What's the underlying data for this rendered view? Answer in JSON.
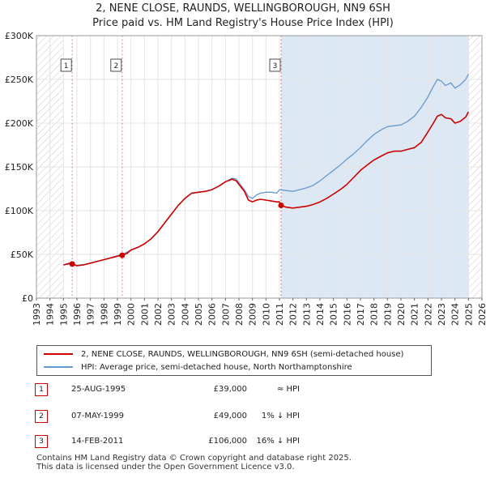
{
  "title_line1": "2, NENE CLOSE, RAUNDS, WELLINGBOROUGH, NN9 6SH",
  "title_line2": "Price paid vs. HM Land Registry's House Price Index (HPI)",
  "colors": {
    "property": "#cc0000",
    "hpi": "#6699cc",
    "shade": "#dde8f5",
    "marker": "#cc0000"
  },
  "chart_data": {
    "type": "line",
    "title": "Price paid vs. HM Land Registry's House Price Index (HPI)",
    "xlabel": "",
    "ylabel": "",
    "xlim": [
      1993,
      2026
    ],
    "ylim": [
      0,
      300000
    ],
    "x_ticks": [
      "1993",
      "1994",
      "1995",
      "1996",
      "1997",
      "1998",
      "1999",
      "2000",
      "2001",
      "2002",
      "2003",
      "2004",
      "2005",
      "2006",
      "2007",
      "2008",
      "2009",
      "2010",
      "2011",
      "2012",
      "2013",
      "2014",
      "2015",
      "2016",
      "2017",
      "2018",
      "2019",
      "2020",
      "2021",
      "2022",
      "2023",
      "2024",
      "2025",
      "2026"
    ],
    "y_ticks": [
      {
        "value": 0,
        "label": "£0"
      },
      {
        "value": 50000,
        "label": "£50K"
      },
      {
        "value": 100000,
        "label": "£100K"
      },
      {
        "value": 150000,
        "label": "£150K"
      },
      {
        "value": 200000,
        "label": "£200K"
      },
      {
        "value": 250000,
        "label": "£250K"
      },
      {
        "value": 300000,
        "label": "£300K"
      }
    ],
    "hatched_ranges": [
      [
        1993,
        1995.0
      ],
      [
        2025.0,
        2026
      ]
    ],
    "series": [
      {
        "name": "2, NENE CLOSE, RAUNDS, WELLINGBOROUGH, NN9 6SH (semi-detached house)",
        "x": [
          1995.0,
          1995.5,
          1995.65,
          1996.0,
          1996.5,
          1997.0,
          1997.5,
          1998.0,
          1998.5,
          1999.0,
          1999.35,
          1999.7,
          2000.0,
          2000.5,
          2001.0,
          2001.5,
          2002.0,
          2002.5,
          2003.0,
          2003.5,
          2004.0,
          2004.5,
          2005.0,
          2005.5,
          2006.0,
          2006.5,
          2007.0,
          2007.5,
          2007.8,
          2008.0,
          2008.4,
          2008.7,
          2009.0,
          2009.3,
          2009.6,
          2010.0,
          2010.4,
          2010.8,
          2011.0,
          2011.12,
          2011.5,
          2012.0,
          2012.5,
          2013.0,
          2013.5,
          2014.0,
          2014.5,
          2015.0,
          2015.5,
          2016.0,
          2016.5,
          2017.0,
          2017.5,
          2018.0,
          2018.5,
          2019.0,
          2019.5,
          2020.0,
          2020.5,
          2021.0,
          2021.5,
          2022.0,
          2022.4,
          2022.7,
          2023.0,
          2023.3,
          2023.7,
          2024.0,
          2024.4,
          2024.8,
          2025.0
        ],
        "values": [
          38000,
          40000,
          39000,
          37000,
          38000,
          40000,
          42000,
          44000,
          46000,
          48000,
          49000,
          51000,
          55000,
          58000,
          62000,
          68000,
          76000,
          86000,
          96000,
          106000,
          114000,
          120000,
          121000,
          122000,
          124000,
          128000,
          133000,
          136000,
          134000,
          130000,
          122000,
          112000,
          110000,
          112000,
          113000,
          112000,
          111000,
          110000,
          110000,
          106000,
          104000,
          103000,
          104000,
          105000,
          107000,
          110000,
          114000,
          119000,
          124000,
          130000,
          138000,
          146000,
          152000,
          158000,
          162000,
          166000,
          168000,
          168000,
          170000,
          172000,
          178000,
          190000,
          200000,
          208000,
          210000,
          206000,
          205000,
          200000,
          202000,
          207000,
          213000
        ]
      },
      {
        "name": "HPI: Average price, semi-detached house, North Northamptonshire",
        "x": [
          1995.0,
          1995.5,
          1996.0,
          1996.5,
          1997.0,
          1997.5,
          1998.0,
          1998.5,
          1999.0,
          1999.5,
          2000.0,
          2000.5,
          2001.0,
          2001.5,
          2002.0,
          2002.5,
          2003.0,
          2003.5,
          2004.0,
          2004.5,
          2005.0,
          2005.5,
          2006.0,
          2006.5,
          2007.0,
          2007.5,
          2007.8,
          2008.0,
          2008.4,
          2008.7,
          2009.0,
          2009.3,
          2009.6,
          2010.0,
          2010.4,
          2010.8,
          2011.0,
          2011.5,
          2012.0,
          2012.5,
          2013.0,
          2013.5,
          2014.0,
          2014.5,
          2015.0,
          2015.5,
          2016.0,
          2016.5,
          2017.0,
          2017.5,
          2018.0,
          2018.5,
          2019.0,
          2019.5,
          2020.0,
          2020.5,
          2021.0,
          2021.5,
          2022.0,
          2022.4,
          2022.7,
          2023.0,
          2023.3,
          2023.7,
          2024.0,
          2024.4,
          2024.8,
          2025.0
        ],
        "values": [
          38000,
          39000,
          37500,
          38500,
          40000,
          42000,
          44000,
          46000,
          48500,
          51000,
          55000,
          58000,
          62000,
          68000,
          76000,
          86000,
          96000,
          106000,
          114000,
          120000,
          121000,
          122000,
          124000,
          128000,
          133000,
          137000,
          136000,
          132000,
          124000,
          116000,
          114000,
          118000,
          120000,
          121000,
          121000,
          120000,
          124000,
          123000,
          122000,
          124000,
          126000,
          129000,
          134000,
          140000,
          146000,
          152000,
          159000,
          165000,
          172000,
          180000,
          187000,
          192000,
          196000,
          197000,
          198000,
          202000,
          208000,
          218000,
          230000,
          242000,
          250000,
          248000,
          243000,
          246000,
          240000,
          244000,
          250000,
          256000
        ]
      }
    ],
    "sales": [
      {
        "id": "1",
        "x": 1995.65,
        "value": 39000
      },
      {
        "id": "2",
        "x": 1999.35,
        "value": 49000
      },
      {
        "id": "3",
        "x": 2011.12,
        "value": 106000
      }
    ]
  },
  "legend": {
    "property_label": "2, NENE CLOSE, RAUNDS, WELLINGBOROUGH, NN9 6SH (semi-detached house)",
    "hpi_label": "HPI: Average price, semi-detached house, North Northamptonshire"
  },
  "sales_table": [
    {
      "id": "1",
      "date": "25-AUG-1995",
      "price": "£39,000",
      "hpi": "≈ HPI"
    },
    {
      "id": "2",
      "date": "07-MAY-1999",
      "price": "£49,000",
      "hpi": "1% ↓ HPI"
    },
    {
      "id": "3",
      "date": "14-FEB-2011",
      "price": "£106,000",
      "hpi": "16% ↓ HPI"
    }
  ],
  "footer": {
    "line1": "Contains HM Land Registry data © Crown copyright and database right 2025.",
    "line2": "This data is licensed under the Open Government Licence v3.0."
  }
}
